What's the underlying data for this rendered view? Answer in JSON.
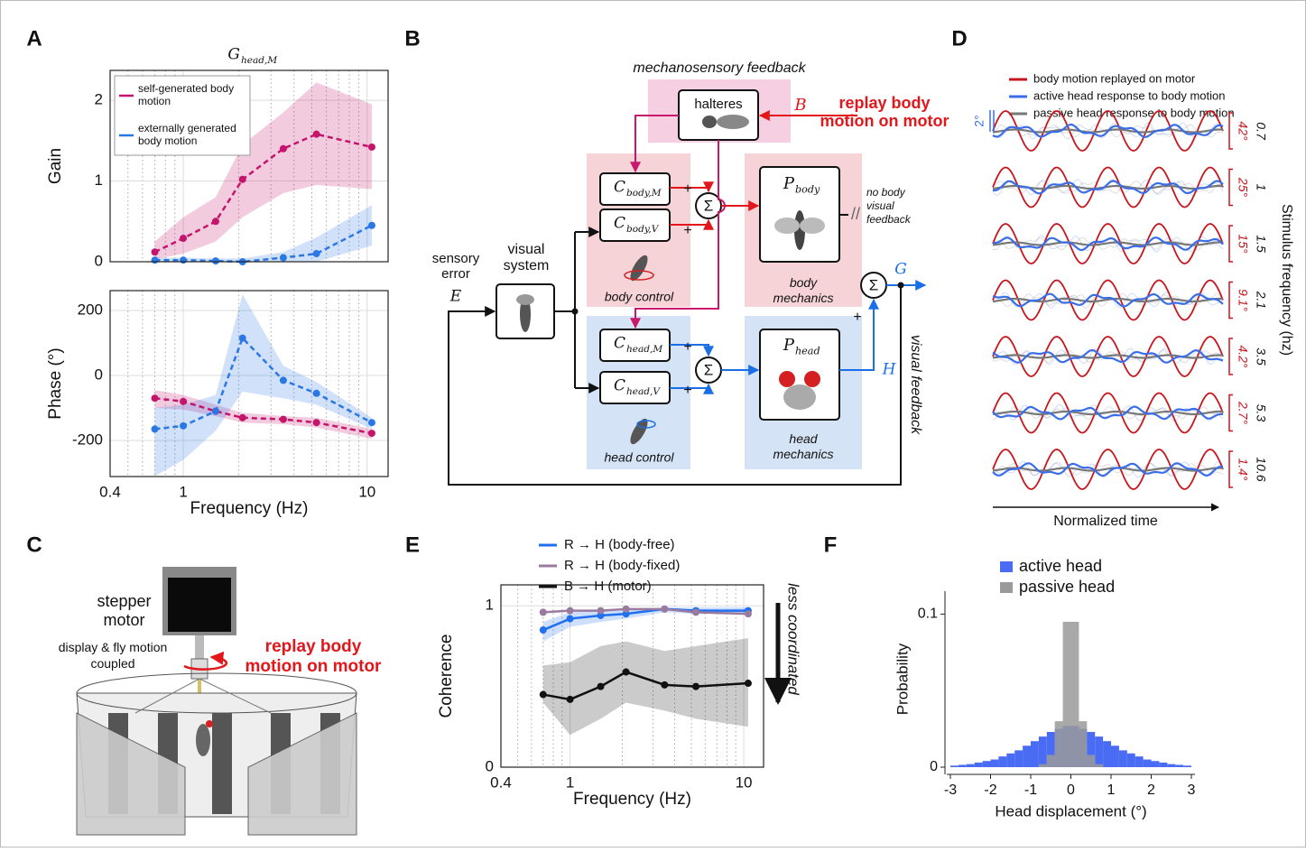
{
  "panels": {
    "a": "A",
    "b": "B",
    "c": "C",
    "d": "D",
    "e": "E",
    "f": "F"
  },
  "chart_data": [
    {
      "type": "line",
      "title": {
        "main": "G",
        "sub": "head,M"
      },
      "ylabel": "Gain",
      "x": [
        0.7,
        1,
        1.5,
        2.1,
        3.5,
        5.3,
        10.6
      ],
      "log_x": true,
      "xlim": [
        0.4,
        13
      ],
      "xticks": [
        0.4,
        1,
        10
      ],
      "xticklabels": false,
      "xminorticks": [
        0.5,
        0.6,
        0.7,
        0.8,
        0.9,
        2,
        3,
        4,
        5,
        6,
        7,
        8,
        9
      ],
      "ylim": [
        0,
        2.37
      ],
      "yticks": [
        0,
        1,
        2
      ],
      "grid": true,
      "dashed": true,
      "legend": "upper left",
      "series": [
        {
          "name": "self-generated body motion",
          "color": "#c4146c",
          "values": [
            0.12,
            0.29,
            0.5,
            1.02,
            1.4,
            1.58,
            1.42
          ],
          "lower": [
            0.03,
            0.1,
            0.25,
            0.55,
            0.85,
            0.95,
            0.9
          ],
          "upper": [
            0.25,
            0.55,
            0.8,
            1.45,
            1.85,
            2.22,
            1.95
          ]
        },
        {
          "name": "externally generated body motion",
          "color": "#2a78e4",
          "values": [
            0.02,
            0.02,
            0.01,
            0,
            0.05,
            0.1,
            0.45
          ],
          "lower": [
            0,
            0,
            0,
            0,
            0,
            0,
            0.2
          ],
          "upper": [
            0.05,
            0.05,
            0.04,
            0.04,
            0.12,
            0.3,
            0.7
          ]
        }
      ]
    },
    {
      "type": "line",
      "xlabel": "Frequency (Hz)",
      "ylabel": "Phase (°)",
      "x": [
        0.7,
        1,
        1.5,
        2.1,
        3.5,
        5.3,
        10.6
      ],
      "log_x": true,
      "xlim": [
        0.4,
        13
      ],
      "xticks": [
        0.4,
        1,
        10
      ],
      "xminorticks": [
        0.5,
        0.6,
        0.7,
        0.8,
        0.9,
        2,
        3,
        4,
        5,
        6,
        7,
        8,
        9
      ],
      "ylim": [
        -311,
        261
      ],
      "yticks": [
        -200,
        0,
        200
      ],
      "grid": true,
      "dashed": true,
      "series": [
        {
          "color": "#c4146c",
          "values": [
            -70,
            -80,
            -110,
            -130,
            -135,
            -145,
            -178
          ],
          "lower": [
            -100,
            -105,
            -125,
            -145,
            -150,
            -160,
            -195
          ],
          "upper": [
            -45,
            -60,
            -90,
            -115,
            -125,
            -130,
            -165
          ]
        },
        {
          "color": "#2a78e4",
          "values": [
            -165,
            -155,
            -110,
            115,
            -15,
            -55,
            -145
          ],
          "lower": [
            -310,
            -260,
            -170,
            -50,
            -70,
            -90,
            -165
          ],
          "upper": [
            -100,
            -90,
            -60,
            250,
            30,
            -20,
            -130
          ]
        }
      ]
    },
    {
      "type": "line",
      "xlabel": "Frequency (Hz)",
      "ylabel": "Coherence",
      "annotation": "less coordinated",
      "x": [
        0.7,
        1,
        1.5,
        2.1,
        3.5,
        5.3,
        10.6
      ],
      "log_x": true,
      "xlim": [
        0.4,
        13
      ],
      "xticks": [
        0.4,
        1,
        10
      ],
      "xminorticks": [
        0.5,
        0.6,
        0.7,
        0.8,
        0.9,
        2,
        3,
        4,
        5,
        6,
        7,
        8,
        9
      ],
      "ylim": [
        0,
        1.13
      ],
      "yticks": [
        0,
        1
      ],
      "grid": true,
      "dashed": false,
      "legend": "above",
      "series": [
        {
          "name": "R → H (body-free)",
          "color": "#1f6ff0",
          "values": [
            0.85,
            0.92,
            0.94,
            0.95,
            0.98,
            0.97,
            0.97
          ],
          "lower": [
            0.78,
            0.87,
            0.9,
            0.92,
            0.96,
            0.95,
            0.95
          ],
          "upper": [
            0.9,
            0.96,
            0.97,
            0.98,
            0.99,
            0.99,
            0.99
          ]
        },
        {
          "name": "R → H (body-fixed)",
          "color": "#9b7aa0",
          "values": [
            0.96,
            0.97,
            0.97,
            0.98,
            0.98,
            0.96,
            0.95
          ]
        },
        {
          "name": "B → H (motor)",
          "color": "#111111",
          "values": [
            0.45,
            0.42,
            0.5,
            0.59,
            0.51,
            0.5,
            0.52
          ],
          "lower": [
            0.4,
            0.2,
            0.3,
            0.4,
            0.35,
            0.3,
            0.25
          ],
          "upper": [
            0.63,
            0.65,
            0.75,
            0.78,
            0.72,
            0.75,
            0.8
          ]
        }
      ]
    },
    {
      "type": "histogram",
      "xlabel": "Head displacement (°)",
      "ylabel": "Probability",
      "bins": [
        -3,
        -2.8,
        -2.6,
        -2.4,
        -2.2,
        -2,
        -1.8,
        -1.6,
        -1.4,
        -1.2,
        -1,
        -0.8,
        -0.6,
        -0.4,
        -0.2,
        0,
        0.2,
        0.4,
        0.6,
        0.8,
        1,
        1.2,
        1.4,
        1.6,
        1.8,
        2,
        2.2,
        2.4,
        2.6,
        2.8,
        3
      ],
      "xlim": [
        -3,
        3
      ],
      "xticks": [
        -3,
        -2,
        -1,
        0,
        1,
        2,
        3
      ],
      "ylim": [
        0,
        0.115
      ],
      "yticks": [
        0,
        0.1
      ],
      "legend": "above",
      "series": [
        {
          "name": "active head",
          "color": "#4a6cf4",
          "values": [
            0.001,
            0.0015,
            0.002,
            0.003,
            0.004,
            0.005,
            0.007,
            0.009,
            0.011,
            0.014,
            0.017,
            0.02,
            0.023,
            0.025,
            0.027,
            0.027,
            0.025,
            0.023,
            0.02,
            0.017,
            0.014,
            0.011,
            0.009,
            0.007,
            0.005,
            0.004,
            0.003,
            0.002,
            0.0015,
            0.001
          ]
        },
        {
          "name": "passive head",
          "color": "#9a9a9a",
          "values": [
            0,
            0,
            0,
            0,
            0,
            0,
            0,
            0,
            0,
            0,
            0,
            0.002,
            0.008,
            0.03,
            0.095,
            0.095,
            0.03,
            0.008,
            0.002,
            0,
            0,
            0,
            0,
            0,
            0,
            0,
            0,
            0,
            0,
            0
          ]
        }
      ]
    }
  ],
  "diagram": {
    "mechanosensory": "mechanosensory feedback",
    "halteres": "halteres",
    "b_signal": "B",
    "replay": "replay body motion on motor",
    "c_body_m": {
      "main": "C",
      "sub": "body,M"
    },
    "c_body_v": {
      "main": "C",
      "sub": "body,V"
    },
    "p_body": {
      "main": "P",
      "sub": "body"
    },
    "no_feedback": "no body visual feedback",
    "cut_mark": "//",
    "body_control": "body control",
    "body_mechanics": "body mechanics",
    "sensory_error": "sensory error",
    "e_signal": "E",
    "visual_system": "visual system",
    "c_head_m": {
      "main": "C",
      "sub": "head,M"
    },
    "c_head_v": {
      "main": "C",
      "sub": "head,V"
    },
    "p_head": {
      "main": "P",
      "sub": "head"
    },
    "h_signal": "H",
    "g_signal": "G",
    "head_control": "head control",
    "head_mechanics": "head mechanics",
    "visual_feedback": "visual feedback",
    "sums": [
      "Σ",
      "Σ",
      "Σ"
    ],
    "plus_signs": [
      "+",
      "+",
      "+",
      "+",
      "+"
    ]
  },
  "panel_c": {
    "stepper_motor": "stepper motor",
    "coupled": "display & fly motion coupled",
    "replay": "replay body motion on motor"
  },
  "panel_d": {
    "legend": [
      {
        "name": "body motion replayed on motor",
        "color": "#c8161d"
      },
      {
        "name": "active head response to body motion",
        "color": "#3a6ee8"
      },
      {
        "name": "passive head response to body motion",
        "color": "#777777"
      }
    ],
    "scale_bar": "2°",
    "amplitudes": [
      "42°",
      "25°",
      "15°",
      "9.1°",
      "4.2°",
      "2.7°",
      "1.4°"
    ],
    "frequencies": [
      "0.7",
      "1",
      "1.5",
      "2.1",
      "3.5",
      "5.3",
      "10.6"
    ],
    "xlabel": "Normalized time",
    "ylabel": "Stimulus frequency (hz)"
  }
}
